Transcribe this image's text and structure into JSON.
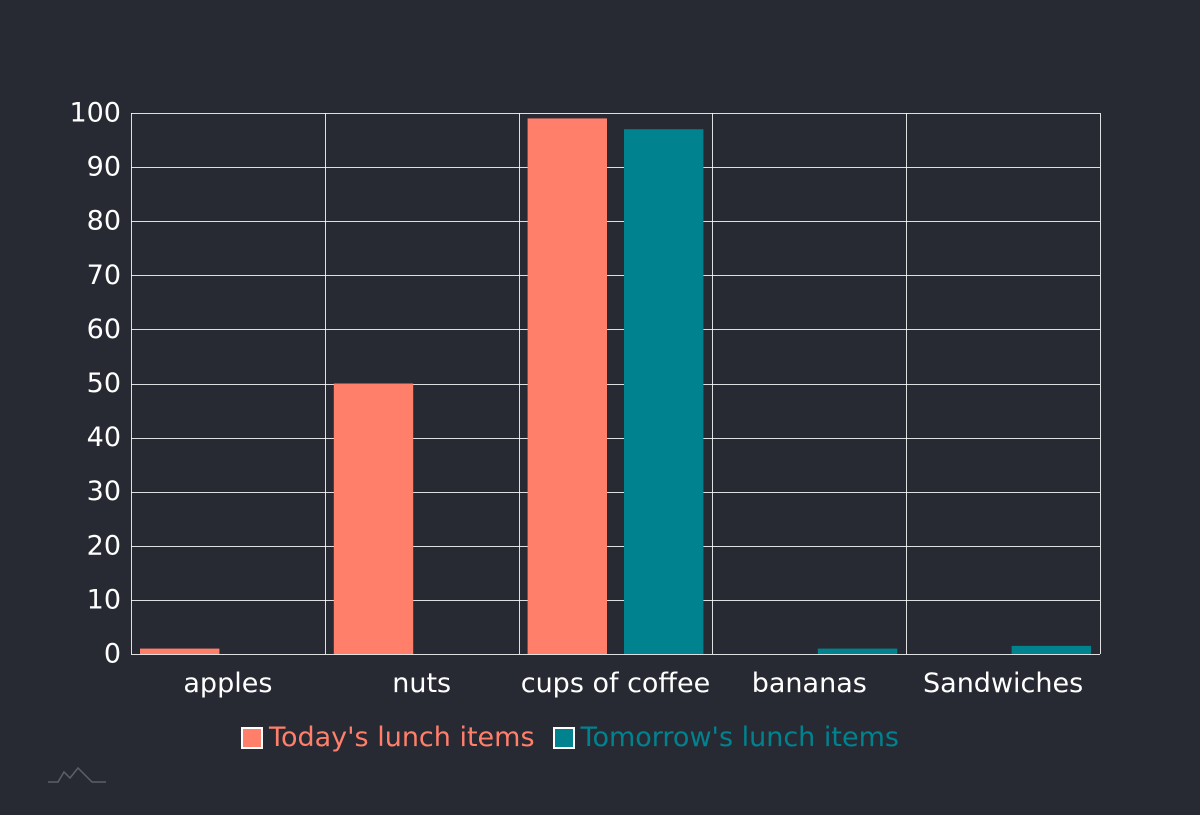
{
  "chart_data": {
    "type": "bar",
    "categories": [
      "apples",
      "nuts",
      "cups of coffee",
      "bananas",
      "Sandwiches"
    ],
    "series": [
      {
        "name": "Today's lunch items",
        "values": [
          1,
          50,
          99,
          0,
          0
        ],
        "color": "#ff7f6b"
      },
      {
        "name": "Tomorrow's lunch items",
        "values": [
          0,
          0,
          97,
          1,
          1.5
        ],
        "color": "#00828f"
      }
    ],
    "ylim": [
      0,
      100
    ],
    "yticks": [
      0,
      10,
      20,
      30,
      40,
      50,
      60,
      70,
      80,
      90,
      100
    ],
    "grid": true,
    "legend": "bottom",
    "title": "",
    "xlabel": "",
    "ylabel": ""
  },
  "colors": {
    "background": "#272a33",
    "grid": "#ffffff",
    "text": "#ffffff"
  },
  "watermark_icon": "mountain-logo-icon"
}
